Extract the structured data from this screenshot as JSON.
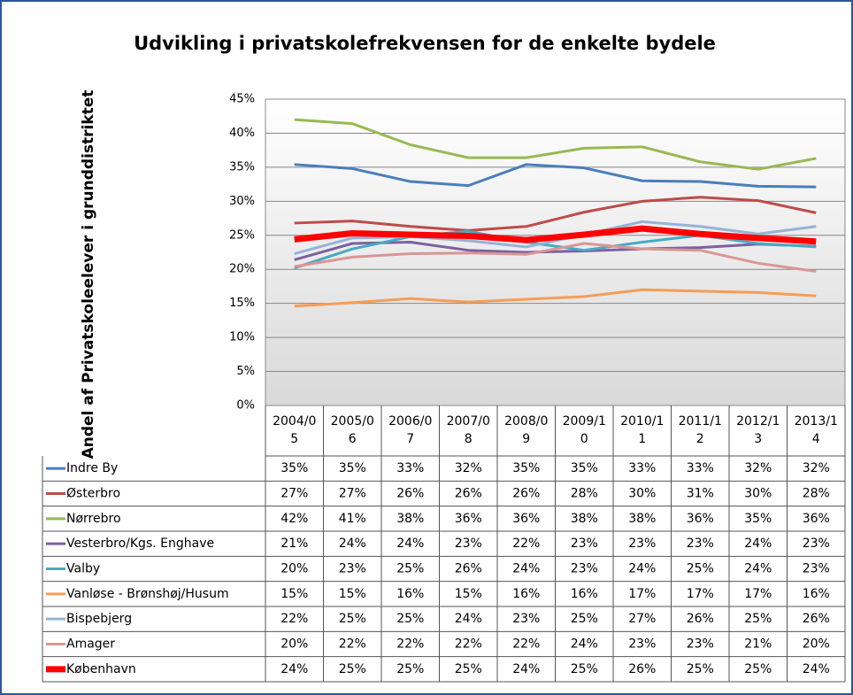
{
  "chart_data": {
    "type": "line",
    "title": "Udvikling i privatskolefrekvensen for de enkelte bydele",
    "y_label": "Andel af Privatskoleelever i grunddistriktet",
    "categories": [
      "2004/05",
      "2005/06",
      "2006/07",
      "2007/08",
      "2008/09",
      "2009/10",
      "2010/11",
      "2011/12",
      "2012/13",
      "2013/14"
    ],
    "ylim": [
      0,
      45
    ],
    "yticks": [
      {
        "value": 0,
        "label": "0%"
      },
      {
        "value": 5,
        "label": "5%"
      },
      {
        "value": 10,
        "label": "10%"
      },
      {
        "value": 15,
        "label": "15%"
      },
      {
        "value": 20,
        "label": "20%"
      },
      {
        "value": 25,
        "label": "25%"
      },
      {
        "value": 30,
        "label": "30%"
      },
      {
        "value": 35,
        "label": "35%"
      },
      {
        "value": 40,
        "label": "40%"
      },
      {
        "value": 45,
        "label": "45%"
      }
    ],
    "grid": true,
    "series": [
      {
        "name": "Indre By",
        "color": "#4a7ebb",
        "linewidth": 3,
        "values": [
          35.4,
          34.8,
          32.9,
          32.3,
          35.4,
          34.9,
          33.0,
          32.9,
          32.2,
          32.1
        ],
        "value_labels": [
          "35%",
          "35%",
          "33%",
          "32%",
          "35%",
          "35%",
          "33%",
          "33%",
          "32%",
          "32%"
        ]
      },
      {
        "name": "Østerbro",
        "color": "#be4b48",
        "linewidth": 3,
        "values": [
          26.8,
          27.1,
          26.3,
          25.7,
          26.3,
          28.4,
          30.0,
          30.6,
          30.1,
          28.3
        ],
        "value_labels": [
          "27%",
          "27%",
          "26%",
          "26%",
          "26%",
          "28%",
          "30%",
          "31%",
          "30%",
          "28%"
        ]
      },
      {
        "name": "Nørrebro",
        "color": "#98b954",
        "linewidth": 3,
        "values": [
          42.0,
          41.4,
          38.3,
          36.4,
          36.4,
          37.8,
          38.0,
          35.8,
          34.7,
          36.3
        ],
        "value_labels": [
          "42%",
          "41%",
          "38%",
          "36%",
          "36%",
          "38%",
          "38%",
          "36%",
          "35%",
          "36%"
        ]
      },
      {
        "name": "Vesterbro/Kgs. Enghave",
        "color": "#7d60a0",
        "linewidth": 3,
        "values": [
          21.4,
          23.8,
          24.0,
          22.8,
          22.5,
          22.7,
          23.0,
          23.2,
          23.7,
          23.4
        ],
        "value_labels": [
          "21%",
          "24%",
          "24%",
          "23%",
          "22%",
          "23%",
          "23%",
          "23%",
          "24%",
          "23%"
        ]
      },
      {
        "name": "Valby",
        "color": "#46aac5",
        "linewidth": 3,
        "values": [
          20.2,
          23.0,
          24.8,
          25.6,
          24.0,
          22.8,
          24.0,
          25.0,
          23.8,
          23.3
        ],
        "value_labels": [
          "20%",
          "23%",
          "25%",
          "26%",
          "24%",
          "23%",
          "24%",
          "25%",
          "24%",
          "23%"
        ]
      },
      {
        "name": "Vanløse - Brønshøj/Husum",
        "color": "#f59d56",
        "linewidth": 3,
        "values": [
          14.6,
          15.1,
          15.7,
          15.2,
          15.6,
          16.0,
          17.0,
          16.8,
          16.6,
          16.1
        ],
        "value_labels": [
          "15%",
          "15%",
          "16%",
          "15%",
          "16%",
          "16%",
          "17%",
          "17%",
          "17%",
          "16%"
        ]
      },
      {
        "name": "Bispebjerg",
        "color": "#95b3d7",
        "linewidth": 3,
        "values": [
          22.3,
          24.6,
          24.8,
          24.2,
          23.3,
          25.1,
          27.0,
          26.3,
          25.2,
          26.3
        ],
        "value_labels": [
          "22%",
          "25%",
          "25%",
          "24%",
          "23%",
          "25%",
          "27%",
          "26%",
          "25%",
          "26%"
        ]
      },
      {
        "name": "Amager",
        "color": "#d99694",
        "linewidth": 3,
        "values": [
          20.4,
          21.8,
          22.3,
          22.4,
          22.2,
          23.8,
          23.0,
          22.8,
          20.9,
          19.7
        ],
        "value_labels": [
          "20%",
          "22%",
          "22%",
          "22%",
          "22%",
          "24%",
          "23%",
          "23%",
          "21%",
          "20%"
        ]
      },
      {
        "name": "København",
        "color": "#ff0000",
        "linewidth": 7,
        "values": [
          24.4,
          25.3,
          25.1,
          24.9,
          24.3,
          25.1,
          26.0,
          25.2,
          24.6,
          24.1
        ],
        "value_labels": [
          "24%",
          "25%",
          "25%",
          "25%",
          "24%",
          "25%",
          "26%",
          "25%",
          "25%",
          "24%"
        ]
      }
    ]
  }
}
